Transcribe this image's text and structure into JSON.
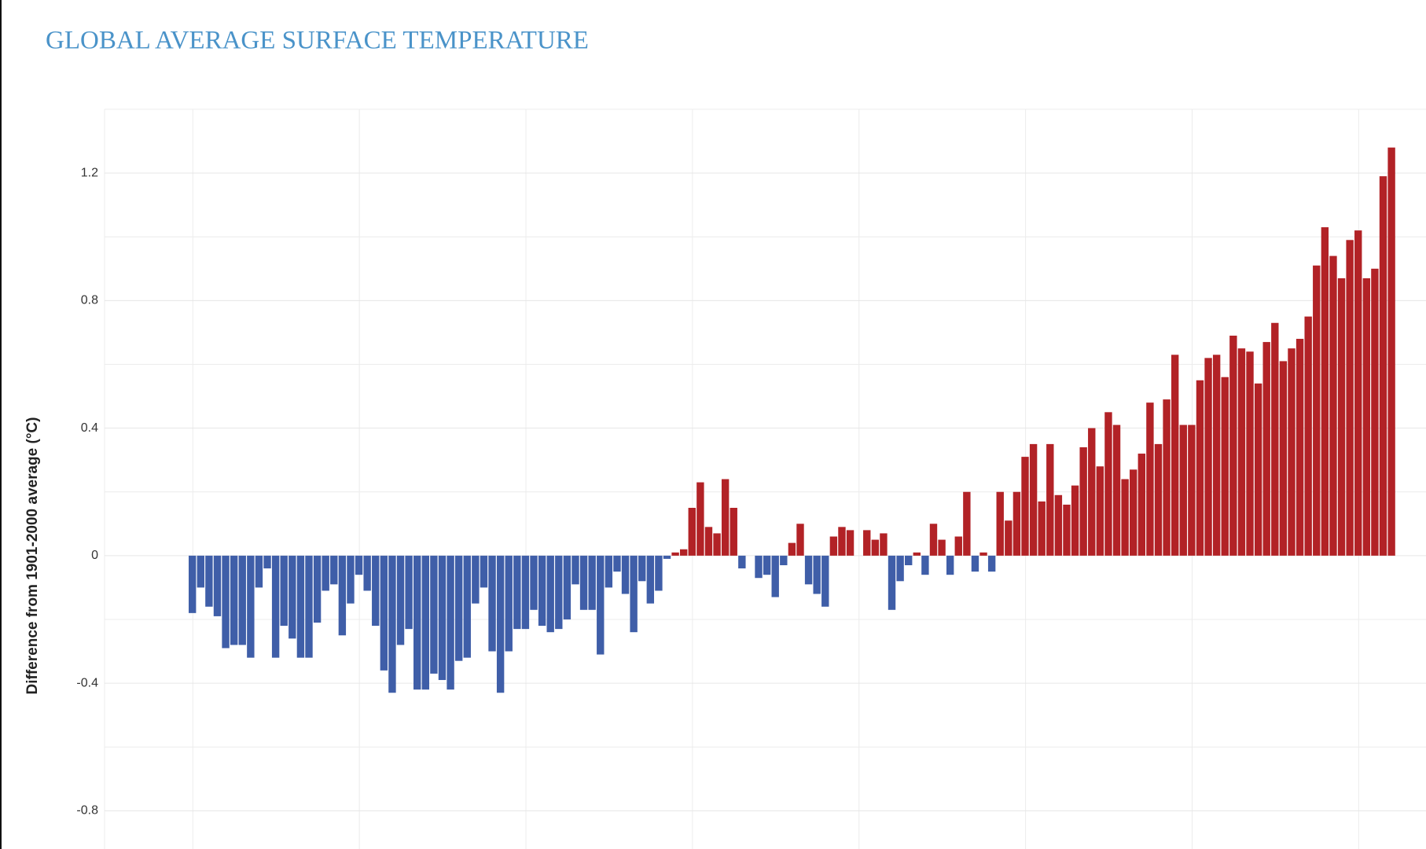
{
  "chart_data": {
    "type": "bar",
    "title": "GLOBAL AVERAGE SURFACE TEMPERATURE",
    "y_label": "Difference from 1901-2000 average (°C)",
    "values": [
      -0.18,
      -0.1,
      -0.16,
      -0.19,
      -0.29,
      -0.28,
      -0.28,
      -0.32,
      -0.1,
      -0.04,
      -0.32,
      -0.22,
      -0.26,
      -0.32,
      -0.32,
      -0.21,
      -0.11,
      -0.09,
      -0.25,
      -0.15,
      -0.06,
      -0.11,
      -0.22,
      -0.36,
      -0.43,
      -0.28,
      -0.23,
      -0.42,
      -0.42,
      -0.37,
      -0.39,
      -0.42,
      -0.33,
      -0.32,
      -0.15,
      -0.1,
      -0.3,
      -0.43,
      -0.3,
      -0.23,
      -0.23,
      -0.17,
      -0.22,
      -0.24,
      -0.23,
      -0.2,
      -0.09,
      -0.17,
      -0.17,
      -0.31,
      -0.1,
      -0.05,
      -0.12,
      -0.24,
      -0.08,
      -0.15,
      -0.11,
      -0.01,
      0.01,
      0.02,
      0.15,
      0.23,
      0.09,
      0.07,
      0.24,
      0.15,
      -0.04,
      0.0,
      -0.07,
      -0.06,
      -0.13,
      -0.03,
      0.04,
      0.1,
      -0.09,
      -0.12,
      -0.16,
      0.06,
      0.09,
      0.08,
      0.0,
      0.08,
      0.05,
      0.07,
      -0.17,
      -0.08,
      -0.03,
      0.01,
      -0.06,
      0.1,
      0.05,
      -0.06,
      0.06,
      0.2,
      -0.05,
      0.01,
      -0.05,
      0.2,
      0.11,
      0.2,
      0.31,
      0.35,
      0.17,
      0.35,
      0.19,
      0.16,
      0.22,
      0.34,
      0.4,
      0.28,
      0.45,
      0.41,
      0.24,
      0.27,
      0.32,
      0.48,
      0.35,
      0.49,
      0.63,
      0.41,
      0.41,
      0.55,
      0.62,
      0.63,
      0.56,
      0.69,
      0.65,
      0.64,
      0.54,
      0.67,
      0.73,
      0.61,
      0.65,
      0.68,
      0.75,
      0.91,
      1.03,
      0.94,
      0.87,
      0.99,
      1.02,
      0.87,
      0.9,
      1.19,
      1.28
    ],
    "positive_color": "#b22226",
    "negative_color": "#3f5ea8",
    "ylim": [
      -0.92,
      1.4
    ],
    "yticks": [
      1.2,
      0.8,
      0.4,
      0,
      -0.4,
      -0.8
    ],
    "yminor": [
      1.0,
      0.6,
      0.2,
      -0.2,
      -0.6
    ],
    "grid": true
  }
}
